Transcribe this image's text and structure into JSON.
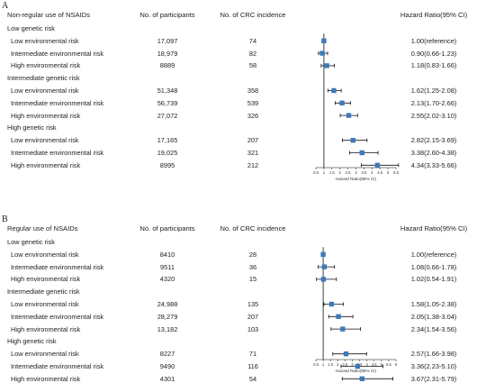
{
  "headers": {
    "participants": "No. of participants",
    "incidence": "No. of CRC incidence",
    "hr": "Hazard Ratio(95% CI)"
  },
  "panels": [
    {
      "letter": "A",
      "title": "Non-regular use of NSAIDs",
      "groups": [
        {
          "name": "Low genetic risk",
          "rows": [
            {
              "label": "Low environmental risk",
              "n": "17,097",
              "events": "74",
              "hr_text": "1.00(reference)"
            },
            {
              "label": "Intermediate environmental risk",
              "n": "18,979",
              "events": "82",
              "hr_text": "0.90(0.66-1.23)"
            },
            {
              "label": "High environmental risk",
              "n": "8889",
              "events": "58",
              "hr_text": "1.18(0.83-1.66)"
            }
          ]
        },
        {
          "name": "Intermediate genetic risk",
          "rows": [
            {
              "label": "Low environmental risk",
              "n": "51,348",
              "events": "358",
              "hr_text": "1.62(1.25-2.08)"
            },
            {
              "label": "Intermediate environmental risk",
              "n": "56,739",
              "events": "539",
              "hr_text": "2.13(1.70-2.66)"
            },
            {
              "label": "High environmental risk",
              "n": "27,072",
              "events": "326",
              "hr_text": "2.55(2.02-3.10)"
            }
          ]
        },
        {
          "name": "High genetic risk",
          "rows": [
            {
              "label": "Low environmental risk",
              "n": "17,165",
              "events": "207",
              "hr_text": "2.82(2.15-3.69)"
            },
            {
              "label": "Intermediate environmental risk",
              "n": "19,025",
              "events": "321",
              "hr_text": "3.38(2.60-4.38)"
            },
            {
              "label": "High environmental risk",
              "n": "8995",
              "events": "212",
              "hr_text": "4.34(3.33-5.66)"
            }
          ]
        }
      ]
    },
    {
      "letter": "B",
      "title": "Regular use of NSAIDs",
      "groups": [
        {
          "name": "Low genetic risk",
          "rows": [
            {
              "label": "Low environmental risk",
              "n": "8410",
              "events": "28",
              "hr_text": "1.00(reference)"
            },
            {
              "label": "Intermediate environmental risk",
              "n": "9511",
              "events": "36",
              "hr_text": "1.08(0.66-1.78)"
            },
            {
              "label": "High environmental risk",
              "n": "4320",
              "events": "15",
              "hr_text": "1.02(0.54-1.91)"
            }
          ]
        },
        {
          "name": "Intermediate genetic risk",
          "rows": [
            {
              "label": "Low environmental risk",
              "n": "24,988",
              "events": "135",
              "hr_text": "1.58(1.05-2.38)"
            },
            {
              "label": "Intermediate environmental risk",
              "n": "28,279",
              "events": "207",
              "hr_text": "2.05(1.38-3.04)"
            },
            {
              "label": "High environmental risk",
              "n": "13,182",
              "events": "103",
              "hr_text": "2.34(1.54-3.56)"
            }
          ]
        },
        {
          "name": "High genetic risk",
          "rows": [
            {
              "label": "Low environmental risk",
              "n": "8227",
              "events": "71",
              "hr_text": "2.57(1.66-3.98)"
            },
            {
              "label": "Intermediate environmental risk",
              "n": "9490",
              "events": "116",
              "hr_text": "3.36(2.23-5.10)"
            },
            {
              "label": "High environmental risk",
              "n": "4301",
              "events": "54",
              "hr_text": "3.67(2.31-5.79)"
            }
          ]
        }
      ]
    }
  ],
  "chart_data": [
    {
      "type": "scatter",
      "subtype": "forest",
      "xlabel": "Hazard Ratio(95% CI)",
      "xlim": [
        0.5,
        5.5
      ],
      "xticks": [
        "0.5",
        "1",
        "1.5",
        "2",
        "2.5",
        "3",
        "3.5",
        "4",
        "4.5",
        "5",
        "5.5"
      ],
      "reference_line": 1,
      "marker_color": "#3d7ab8",
      "points": [
        {
          "hr": 1.0,
          "lo": null,
          "hi": null
        },
        {
          "hr": 0.9,
          "lo": 0.66,
          "hi": 1.23
        },
        {
          "hr": 1.18,
          "lo": 0.83,
          "hi": 1.66
        },
        {
          "hr": 1.62,
          "lo": 1.25,
          "hi": 2.08
        },
        {
          "hr": 2.13,
          "lo": 1.7,
          "hi": 2.66
        },
        {
          "hr": 2.55,
          "lo": 2.02,
          "hi": 3.1
        },
        {
          "hr": 2.82,
          "lo": 2.15,
          "hi": 3.69
        },
        {
          "hr": 3.38,
          "lo": 2.6,
          "hi": 4.38
        },
        {
          "hr": 4.34,
          "lo": 3.33,
          "hi": 5.66
        }
      ]
    },
    {
      "type": "scatter",
      "subtype": "forest",
      "xlabel": "Hazard Ratio(95% CI)",
      "xlim": [
        0.5,
        6
      ],
      "xticks": [
        "0.5",
        "1",
        "1.5",
        "2",
        "2.5",
        "3",
        "3.5",
        "4",
        "4.5",
        "5",
        "5.5",
        "6"
      ],
      "reference_line": 1,
      "marker_color": "#3d7ab8",
      "points": [
        {
          "hr": 1.0,
          "lo": null,
          "hi": null
        },
        {
          "hr": 1.08,
          "lo": 0.66,
          "hi": 1.78
        },
        {
          "hr": 1.02,
          "lo": 0.54,
          "hi": 1.91
        },
        {
          "hr": 1.58,
          "lo": 1.05,
          "hi": 2.38
        },
        {
          "hr": 2.05,
          "lo": 1.38,
          "hi": 3.04
        },
        {
          "hr": 2.34,
          "lo": 1.54,
          "hi": 3.56
        },
        {
          "hr": 2.57,
          "lo": 1.66,
          "hi": 3.98
        },
        {
          "hr": 3.36,
          "lo": 2.23,
          "hi": 5.1
        },
        {
          "hr": 3.67,
          "lo": 2.31,
          "hi": 5.79
        }
      ]
    }
  ]
}
